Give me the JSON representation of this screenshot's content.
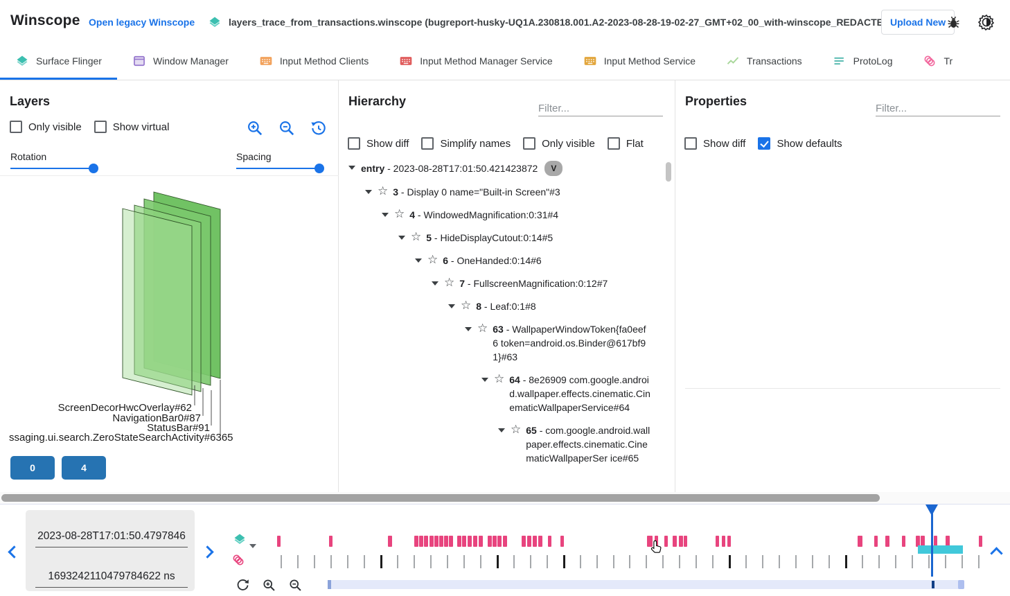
{
  "header": {
    "app_title": "Winscope",
    "legacy_link": "Open legacy Winscope",
    "file_name": "layers_trace_from_transactions.winscope (bugreport-husky-UQ1A.230818.001.A2-2023-08-28-19-02-27_GMT+02_00_with-winscope_REDACTED.zip)",
    "upload_button": "Upload New"
  },
  "tabs": [
    {
      "label": "Surface Flinger",
      "icon": "layers",
      "color": "#3cbfb0",
      "active": true
    },
    {
      "label": "Window Manager",
      "icon": "window",
      "color": "#9575cd",
      "active": false
    },
    {
      "label": "Input Method Clients",
      "icon": "keyboard",
      "color": "#f2a25c",
      "active": false
    },
    {
      "label": "Input Method Manager Service",
      "icon": "keyboard",
      "color": "#e05d5d",
      "active": false
    },
    {
      "label": "Input Method Service",
      "icon": "keyboard",
      "color": "#e2a63d",
      "active": false
    },
    {
      "label": "Transactions",
      "icon": "chart",
      "color": "#a8d79a",
      "active": false
    },
    {
      "label": "ProtoLog",
      "icon": "notes",
      "color": "#4db6ac",
      "active": false
    },
    {
      "label": "Tr",
      "icon": "transition",
      "color": "#f2679d",
      "active": false
    }
  ],
  "layers": {
    "title": "Layers",
    "checkboxes": [
      {
        "label": "Only visible",
        "checked": false
      },
      {
        "label": "Show virtual",
        "checked": false
      }
    ],
    "rotation_label": "Rotation",
    "spacing_label": "Spacing",
    "layer_labels": [
      "ScreenDecorHwcOverlay#62",
      "NavigationBar0#87",
      "StatusBar#91",
      "ssaging.ui.search.ZeroStateSearchActivity#6365"
    ],
    "display_buttons": [
      "0",
      "4"
    ]
  },
  "hierarchy": {
    "title": "Hierarchy",
    "filter_placeholder": "Filter...",
    "checkboxes": [
      {
        "label": "Show diff",
        "checked": false
      },
      {
        "label": "Simplify names",
        "checked": false
      },
      {
        "label": "Only visible",
        "checked": false
      },
      {
        "label": "Flat",
        "checked": false
      }
    ],
    "tree": [
      {
        "level": 0,
        "n": "entry",
        "t": "2023-08-28T17:01:50.421423872",
        "badge": "V",
        "star": false
      },
      {
        "level": 1,
        "n": "3",
        "t": "Display 0 name=\"Built-in Screen\"#3",
        "star": true
      },
      {
        "level": 2,
        "n": "4",
        "t": "WindowedMagnification:0:31#4",
        "star": true
      },
      {
        "level": 3,
        "n": "5",
        "t": "HideDisplayCutout:0:14#5",
        "star": true
      },
      {
        "level": 4,
        "n": "6",
        "t": "OneHanded:0:14#6",
        "star": true
      },
      {
        "level": 5,
        "n": "7",
        "t": "FullscreenMagnification:0:12#7",
        "star": true
      },
      {
        "level": 6,
        "n": "8",
        "t": "Leaf:0:1#8",
        "star": true
      },
      {
        "level": 7,
        "n": "63",
        "t": "WallpaperWindowToken{fa0eef6 token=android.os.Binder@617bf91}#63",
        "star": true
      },
      {
        "level": 8,
        "n": "64",
        "t": "8e26909 com.google.android.wallpaper.effects.cinematic.CinematicWallpaperService#64",
        "star": true
      },
      {
        "level": 9,
        "n": "65",
        "t": "com.google.android.wallpaper.effects.cinematic.CinematicWallpaperSer ice#65",
        "star": true
      }
    ]
  },
  "properties": {
    "title": "Properties",
    "filter_placeholder": "Filter...",
    "checkboxes": [
      {
        "label": "Show diff",
        "checked": false
      },
      {
        "label": "Show defaults",
        "checked": true
      }
    ]
  },
  "timeline": {
    "start_time_value": "2023-08-28T17:01:50.4797846",
    "ns_value": "1693242110479784622 ns",
    "cursor_pct": 92.6,
    "highlight": {
      "start_pct": 90.7,
      "width_pct": 6.4
    },
    "marks": [
      [
        0,
        5
      ],
      [
        7.4,
        5
      ],
      [
        15.7,
        6
      ],
      [
        19.4,
        6
      ],
      [
        20.1,
        6
      ],
      [
        20.8,
        6
      ],
      [
        21.6,
        6
      ],
      [
        22.3,
        6
      ],
      [
        22.9,
        6
      ],
      [
        23.6,
        6
      ],
      [
        24.3,
        6
      ],
      [
        25.5,
        6
      ],
      [
        26.2,
        6
      ],
      [
        27,
        6
      ],
      [
        27.7,
        6
      ],
      [
        28.5,
        6
      ],
      [
        29.8,
        6
      ],
      [
        30.5,
        6
      ],
      [
        31.2,
        6
      ],
      [
        32,
        6
      ],
      [
        34.6,
        6
      ],
      [
        35.4,
        6
      ],
      [
        36.2,
        6
      ],
      [
        37,
        6
      ],
      [
        38.3,
        5
      ],
      [
        40.1,
        5
      ],
      [
        52.4,
        8
      ],
      [
        53.4,
        5
      ],
      [
        54.8,
        5
      ],
      [
        56,
        6
      ],
      [
        56.9,
        6
      ],
      [
        57.5,
        5
      ],
      [
        62.1,
        5
      ],
      [
        62.9,
        5
      ],
      [
        63.7,
        5
      ],
      [
        82.2,
        7
      ],
      [
        84.5,
        5
      ],
      [
        86.1,
        6
      ],
      [
        88.4,
        5
      ],
      [
        90.4,
        6
      ],
      [
        91.1,
        6
      ],
      [
        92.9,
        5
      ],
      [
        94.6,
        6
      ],
      [
        99.3,
        5
      ]
    ],
    "ticks": {
      "count": 43,
      "spacing_pct": 2.35,
      "start_pct": 0.5,
      "dark": [
        6,
        13,
        17,
        27,
        34
      ]
    }
  }
}
